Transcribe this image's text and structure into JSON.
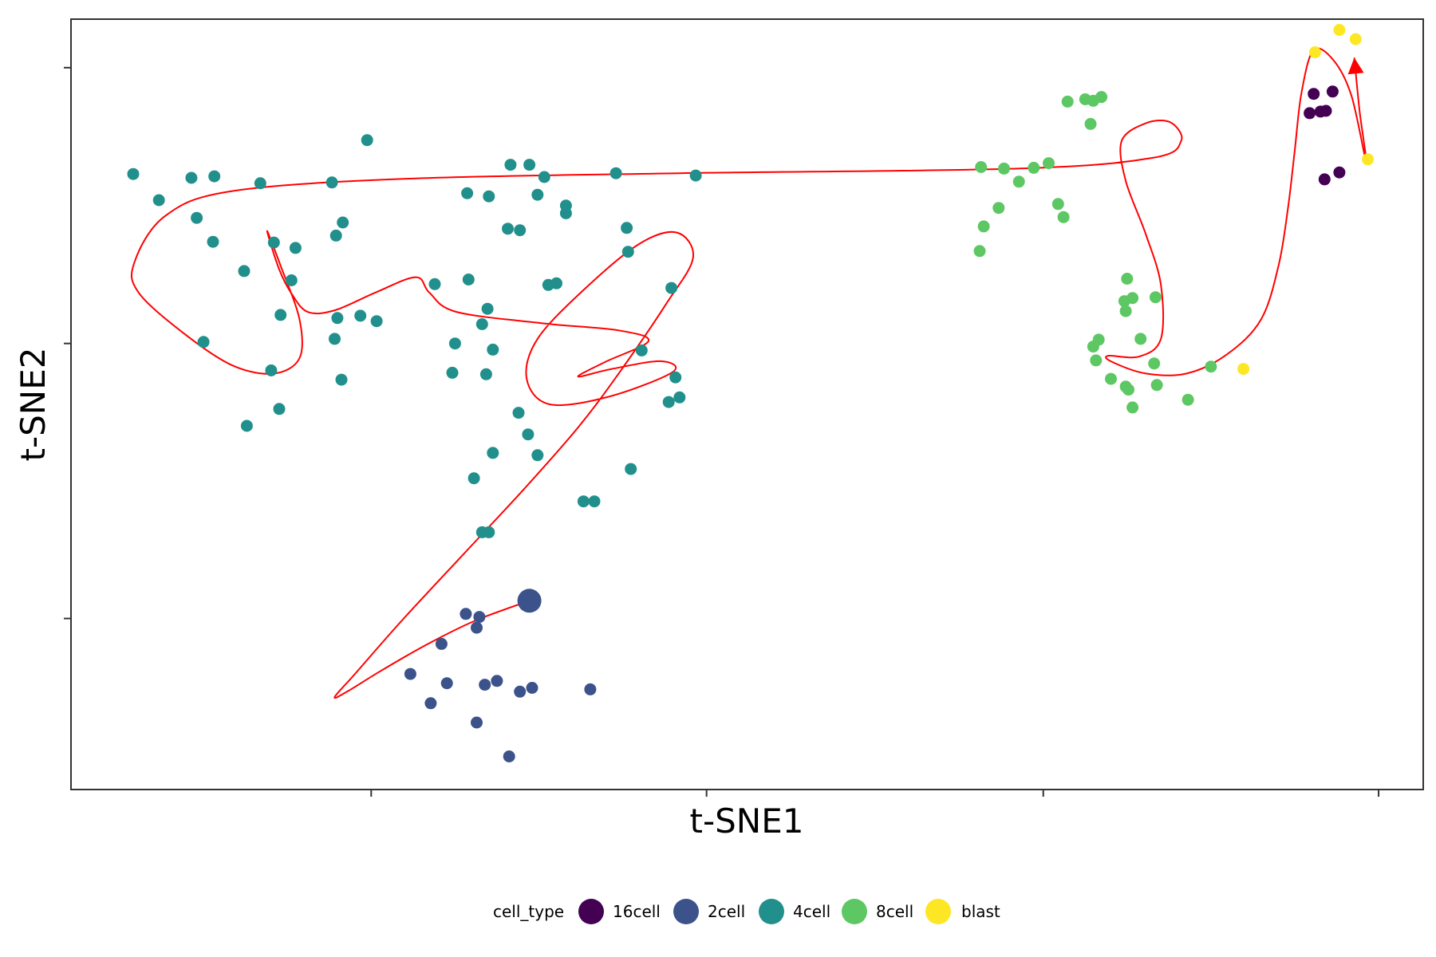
{
  "chart_data": {
    "type": "scatter",
    "xlabel": "t-SNE1",
    "ylabel": "t-SNE2",
    "xlim": [
      0,
      100
    ],
    "ylim": [
      0,
      100
    ],
    "grid": false,
    "legend_position": "bottom",
    "legend": {
      "title": "cell_type",
      "entries": [
        {
          "name": "16cell",
          "color": "#440154"
        },
        {
          "name": "2cell",
          "color": "#3B528B"
        },
        {
          "name": "4cell",
          "color": "#21908C"
        },
        {
          "name": "8cell",
          "color": "#5DC863"
        },
        {
          "name": "blast",
          "color": "#FDE725"
        }
      ]
    },
    "series": [
      {
        "name": "16cell",
        "color": "#440154",
        "points": [
          [
            91.9,
            90.3
          ],
          [
            91.6,
            87.8
          ],
          [
            92.4,
            88.0
          ],
          [
            92.8,
            88.1
          ],
          [
            93.3,
            90.6
          ],
          [
            93.8,
            80.1
          ],
          [
            92.7,
            79.2
          ]
        ]
      },
      {
        "name": "2cell",
        "color": "#3B528B",
        "points": [
          [
            33.9,
            24.5
          ],
          [
            30.2,
            22.4
          ],
          [
            29.2,
            22.8
          ],
          [
            30.0,
            21.0
          ],
          [
            27.4,
            18.9
          ],
          [
            25.1,
            15.0
          ],
          [
            27.8,
            13.8
          ],
          [
            31.5,
            14.1
          ],
          [
            30.6,
            13.6
          ],
          [
            26.6,
            11.2
          ],
          [
            33.2,
            12.7
          ],
          [
            34.1,
            13.2
          ],
          [
            38.4,
            13.0
          ],
          [
            30.0,
            8.7
          ],
          [
            32.4,
            4.3
          ]
        ]
      },
      {
        "name": "4cell",
        "color": "#21908C",
        "points": [
          [
            21.9,
            84.3
          ],
          [
            4.6,
            79.9
          ],
          [
            6.5,
            76.5
          ],
          [
            8.9,
            79.4
          ],
          [
            10.6,
            79.6
          ],
          [
            14.0,
            78.7
          ],
          [
            19.3,
            78.8
          ],
          [
            9.3,
            74.2
          ],
          [
            10.5,
            71.1
          ],
          [
            12.8,
            67.3
          ],
          [
            15.0,
            71.0
          ],
          [
            16.6,
            70.3
          ],
          [
            20.1,
            73.6
          ],
          [
            19.6,
            71.9
          ],
          [
            16.3,
            66.1
          ],
          [
            15.5,
            61.6
          ],
          [
            19.7,
            61.2
          ],
          [
            21.4,
            61.5
          ],
          [
            22.6,
            60.8
          ],
          [
            9.8,
            58.1
          ],
          [
            19.5,
            58.5
          ],
          [
            14.8,
            54.4
          ],
          [
            20.0,
            53.2
          ],
          [
            15.4,
            49.4
          ],
          [
            13.0,
            47.2
          ],
          [
            26.9,
            65.6
          ],
          [
            29.4,
            66.2
          ],
          [
            32.5,
            81.1
          ],
          [
            33.9,
            81.1
          ],
          [
            35.0,
            79.5
          ],
          [
            29.3,
            77.4
          ],
          [
            30.9,
            77.0
          ],
          [
            32.3,
            72.8
          ],
          [
            33.2,
            72.6
          ],
          [
            34.5,
            77.2
          ],
          [
            36.6,
            75.8
          ],
          [
            36.6,
            74.8
          ],
          [
            40.3,
            80.0
          ],
          [
            41.1,
            72.9
          ],
          [
            46.2,
            79.7
          ],
          [
            41.2,
            69.8
          ],
          [
            44.4,
            65.1
          ],
          [
            35.3,
            65.5
          ],
          [
            35.9,
            65.7
          ],
          [
            30.8,
            62.4
          ],
          [
            30.4,
            60.4
          ],
          [
            28.4,
            57.9
          ],
          [
            31.2,
            57.1
          ],
          [
            42.2,
            57.0
          ],
          [
            30.7,
            53.9
          ],
          [
            28.2,
            54.1
          ],
          [
            44.7,
            53.5
          ],
          [
            44.2,
            50.3
          ],
          [
            45.0,
            50.9
          ],
          [
            33.1,
            48.9
          ],
          [
            33.8,
            46.1
          ],
          [
            34.5,
            43.4
          ],
          [
            31.2,
            43.7
          ],
          [
            41.4,
            41.6
          ],
          [
            29.8,
            40.4
          ],
          [
            37.9,
            37.4
          ],
          [
            38.7,
            37.4
          ],
          [
            30.4,
            33.4
          ],
          [
            30.9,
            33.4
          ]
        ]
      },
      {
        "name": "8cell",
        "color": "#5DC863",
        "points": [
          [
            73.7,
            89.3
          ],
          [
            75.0,
            89.6
          ],
          [
            75.6,
            89.4
          ],
          [
            76.2,
            89.9
          ],
          [
            75.4,
            86.4
          ],
          [
            67.3,
            80.8
          ],
          [
            69.0,
            80.6
          ],
          [
            71.2,
            80.7
          ],
          [
            72.3,
            81.3
          ],
          [
            70.1,
            78.9
          ],
          [
            68.6,
            75.5
          ],
          [
            67.5,
            73.1
          ],
          [
            73.0,
            76.0
          ],
          [
            73.4,
            74.3
          ],
          [
            67.2,
            69.9
          ],
          [
            78.1,
            66.3
          ],
          [
            77.9,
            63.4
          ],
          [
            78.5,
            63.8
          ],
          [
            80.2,
            63.9
          ],
          [
            78.0,
            62.1
          ],
          [
            76.0,
            58.4
          ],
          [
            75.6,
            57.5
          ],
          [
            79.1,
            58.5
          ],
          [
            80.1,
            55.3
          ],
          [
            84.3,
            54.9
          ],
          [
            75.8,
            55.7
          ],
          [
            76.9,
            53.3
          ],
          [
            78.0,
            52.3
          ],
          [
            80.3,
            52.5
          ],
          [
            78.2,
            51.9
          ],
          [
            82.6,
            50.6
          ],
          [
            78.5,
            49.6
          ]
        ]
      },
      {
        "name": "blast",
        "color": "#FDE725",
        "points": [
          [
            92.0,
            95.7
          ],
          [
            93.8,
            98.6
          ],
          [
            95.0,
            97.4
          ],
          [
            95.9,
            81.8
          ],
          [
            86.7,
            54.6
          ]
        ]
      }
    ],
    "highlighted_point": {
      "series": "2cell",
      "point": [
        33.9,
        24.5
      ]
    },
    "trajectory": {
      "color": "#FF0000",
      "end_arrow": true,
      "points": [
        [
          33.9,
          24.5
        ],
        [
          30.0,
          22.0
        ],
        [
          26.5,
          19.0
        ],
        [
          23.0,
          15.5
        ],
        [
          20.5,
          12.8
        ],
        [
          19.5,
          12.0
        ],
        [
          21.0,
          15.0
        ],
        [
          24.5,
          22.0
        ],
        [
          29.0,
          30.5
        ],
        [
          33.5,
          39.0
        ],
        [
          37.5,
          47.0
        ],
        [
          40.5,
          54.0
        ],
        [
          44.0,
          63.0
        ],
        [
          46.0,
          69.0
        ],
        [
          44.8,
          72.3
        ],
        [
          42.0,
          70.8
        ],
        [
          38.0,
          65.0
        ],
        [
          34.5,
          58.5
        ],
        [
          33.7,
          53.3
        ],
        [
          35.4,
          50.0
        ],
        [
          39.8,
          51.0
        ],
        [
          44.5,
          54.2
        ],
        [
          43.6,
          55.6
        ],
        [
          40.0,
          54.6
        ],
        [
          37.5,
          53.6
        ],
        [
          39.5,
          55.5
        ],
        [
          42.7,
          58.2
        ],
        [
          40.5,
          59.6
        ],
        [
          35.0,
          60.5
        ],
        [
          28.5,
          62.0
        ],
        [
          26.5,
          64.5
        ],
        [
          25.5,
          66.5
        ],
        [
          22.5,
          64.5
        ],
        [
          19.5,
          62.2
        ],
        [
          17.5,
          62.0
        ],
        [
          16.3,
          64.4
        ],
        [
          15.4,
          67.5
        ],
        [
          14.5,
          72.5
        ],
        [
          15.5,
          68.0
        ],
        [
          16.9,
          61.0
        ],
        [
          16.9,
          56.0
        ],
        [
          15.0,
          54.0
        ],
        [
          12.0,
          55.0
        ],
        [
          8.5,
          59.0
        ],
        [
          5.0,
          64.5
        ],
        [
          4.7,
          68.5
        ],
        [
          7.0,
          74.5
        ],
        [
          12.0,
          77.7
        ],
        [
          25.0,
          79.3
        ],
        [
          45.0,
          80.0
        ],
        [
          70.0,
          80.6
        ],
        [
          80.0,
          82.0
        ],
        [
          82.1,
          84.2
        ],
        [
          81.3,
          86.6
        ],
        [
          79.5,
          86.5
        ],
        [
          77.7,
          84.2
        ],
        [
          78.0,
          79.0
        ],
        [
          79.5,
          72.0
        ],
        [
          80.6,
          65.5
        ],
        [
          80.6,
          58.5
        ],
        [
          79.0,
          56.2
        ],
        [
          76.7,
          56.3
        ],
        [
          77.0,
          55.5
        ],
        [
          79.5,
          54.0
        ],
        [
          82.5,
          54.0
        ],
        [
          85.5,
          56.5
        ],
        [
          88.0,
          61.0
        ],
        [
          89.3,
          68.0
        ],
        [
          90.0,
          75.5
        ],
        [
          90.5,
          83.0
        ],
        [
          91.0,
          90.5
        ],
        [
          91.9,
          96.0
        ],
        [
          93.4,
          94.6
        ],
        [
          94.7,
          90.0
        ],
        [
          95.8,
          81.3
        ],
        [
          95.3,
          88.0
        ],
        [
          94.9,
          95.0
        ]
      ]
    }
  }
}
